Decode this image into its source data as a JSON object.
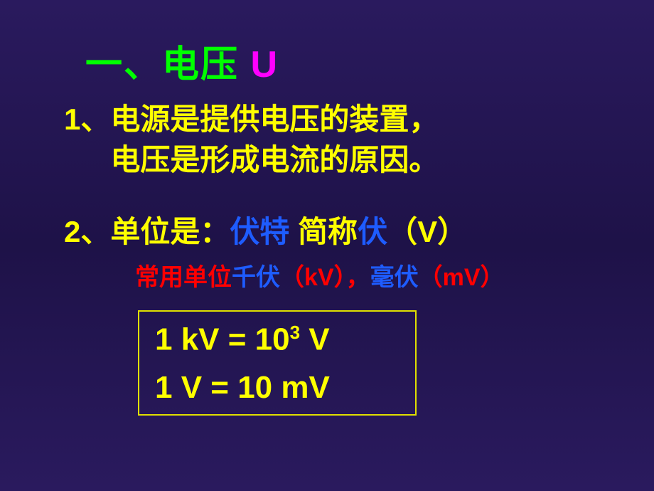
{
  "title": {
    "part1": "一、电压 ",
    "part2": "U"
  },
  "point1": {
    "label": "1、",
    "line_a": "电源是提供电压的装置，",
    "line_b": "电压是形成电流的原因。"
  },
  "point2": {
    "label": "2、",
    "prefix": "单位是：",
    "unit_full": "伏特",
    "mid": " 简称",
    "unit_short": "伏",
    "symbol": "（V）"
  },
  "point2_sub": {
    "prefix": "常用单位",
    "kv": "千伏",
    "kv_sym": "（kV），",
    "mv": "毫伏",
    "mv_sym": "（mV）"
  },
  "equations": {
    "eq1_lhs": "1 kV = 10",
    "eq1_sup": "3",
    "eq1_rhs": " V",
    "eq2": "1 V = 10 mV"
  },
  "colors": {
    "green": "#00ff00",
    "magenta": "#ff00ff",
    "yellow": "#ffff00",
    "blue": "#1e5cff",
    "red": "#ff0000",
    "bg_top": "#2a1a5e",
    "bg_mid": "#1e1248",
    "box_border": "#e0e000"
  },
  "fonts": {
    "family": "SimHei",
    "title_size": 52,
    "body_size": 42,
    "sub_size": 34,
    "eq_size": 44
  }
}
